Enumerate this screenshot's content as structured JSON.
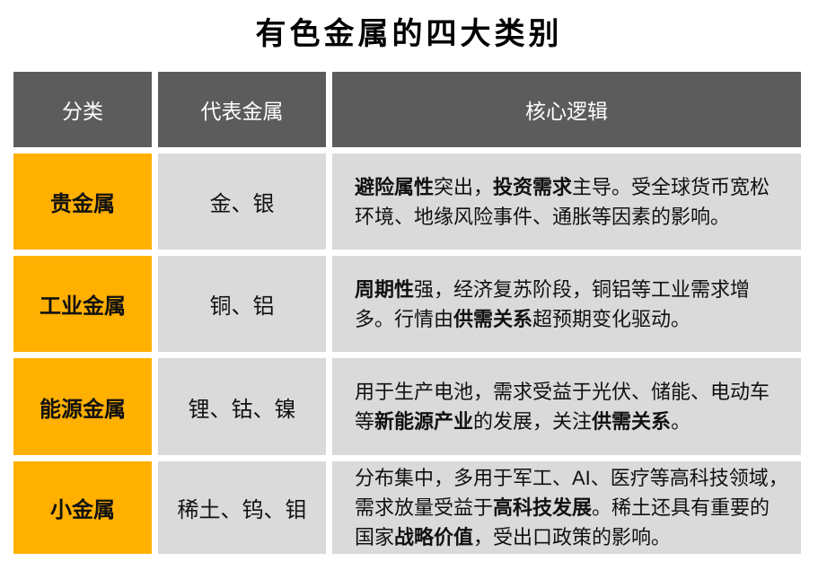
{
  "title": "有色金属的四大类别",
  "colors": {
    "header_bg": "#5C5C5C",
    "header_text": "#FFFFFF",
    "category_bg": "#FFB000",
    "cell_bg": "#DADADA",
    "body_text": "#111111",
    "page_bg": "#FFFFFF"
  },
  "table": {
    "headers": [
      "分类",
      "代表金属",
      "核心逻辑"
    ],
    "rows": [
      {
        "category": "贵金属",
        "metals": "金、银",
        "logic": [
          {
            "text": "避险属性",
            "bold": true
          },
          {
            "text": "突出，",
            "bold": false
          },
          {
            "text": "投资需求",
            "bold": true
          },
          {
            "text": "主导。受全球货币宽松环境、地缘风险事件、通胀等因素的影响。",
            "bold": false
          }
        ]
      },
      {
        "category": "工业金属",
        "metals": "铜、铝",
        "logic": [
          {
            "text": "周期性",
            "bold": true
          },
          {
            "text": "强，经济复苏阶段，铜铝等工业需求增多。行情由",
            "bold": false
          },
          {
            "text": "供需关系",
            "bold": true
          },
          {
            "text": "超预期变化驱动。",
            "bold": false
          }
        ]
      },
      {
        "category": "能源金属",
        "metals": "锂、钴、镍",
        "logic": [
          {
            "text": "用于生产电池，需求受益于光伏、储能、电动车等",
            "bold": false
          },
          {
            "text": "新能源产业",
            "bold": true
          },
          {
            "text": "的发展，关注",
            "bold": false
          },
          {
            "text": "供需关系",
            "bold": true
          },
          {
            "text": "。",
            "bold": false
          }
        ]
      },
      {
        "category": "小金属",
        "metals": "稀土、钨、钼",
        "logic": [
          {
            "text": "分布集中，多用于军工、AI、医疗等高科技领域，需求放量受益于",
            "bold": false
          },
          {
            "text": "高科技发展",
            "bold": true
          },
          {
            "text": "。稀土还具有重要的国家",
            "bold": false
          },
          {
            "text": "战略价值",
            "bold": true
          },
          {
            "text": "，受出口政策的影响。",
            "bold": false
          }
        ]
      }
    ]
  }
}
